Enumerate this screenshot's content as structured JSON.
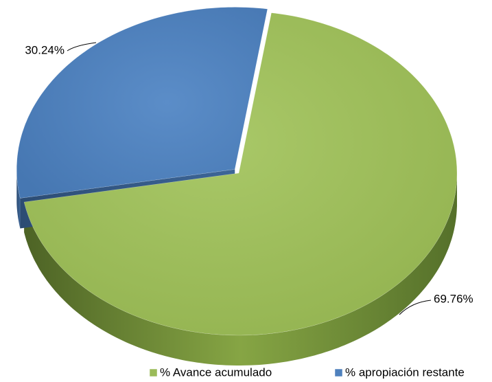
{
  "chart_data": {
    "type": "pie",
    "categories": [
      "% Avance acumulado",
      "% apropiación restante"
    ],
    "values": [
      69.76,
      30.24
    ],
    "value_labels": [
      "69.76%",
      "30.24%"
    ],
    "colors": [
      "#9bbb59",
      "#4f81bd"
    ],
    "legend": "bottom"
  }
}
